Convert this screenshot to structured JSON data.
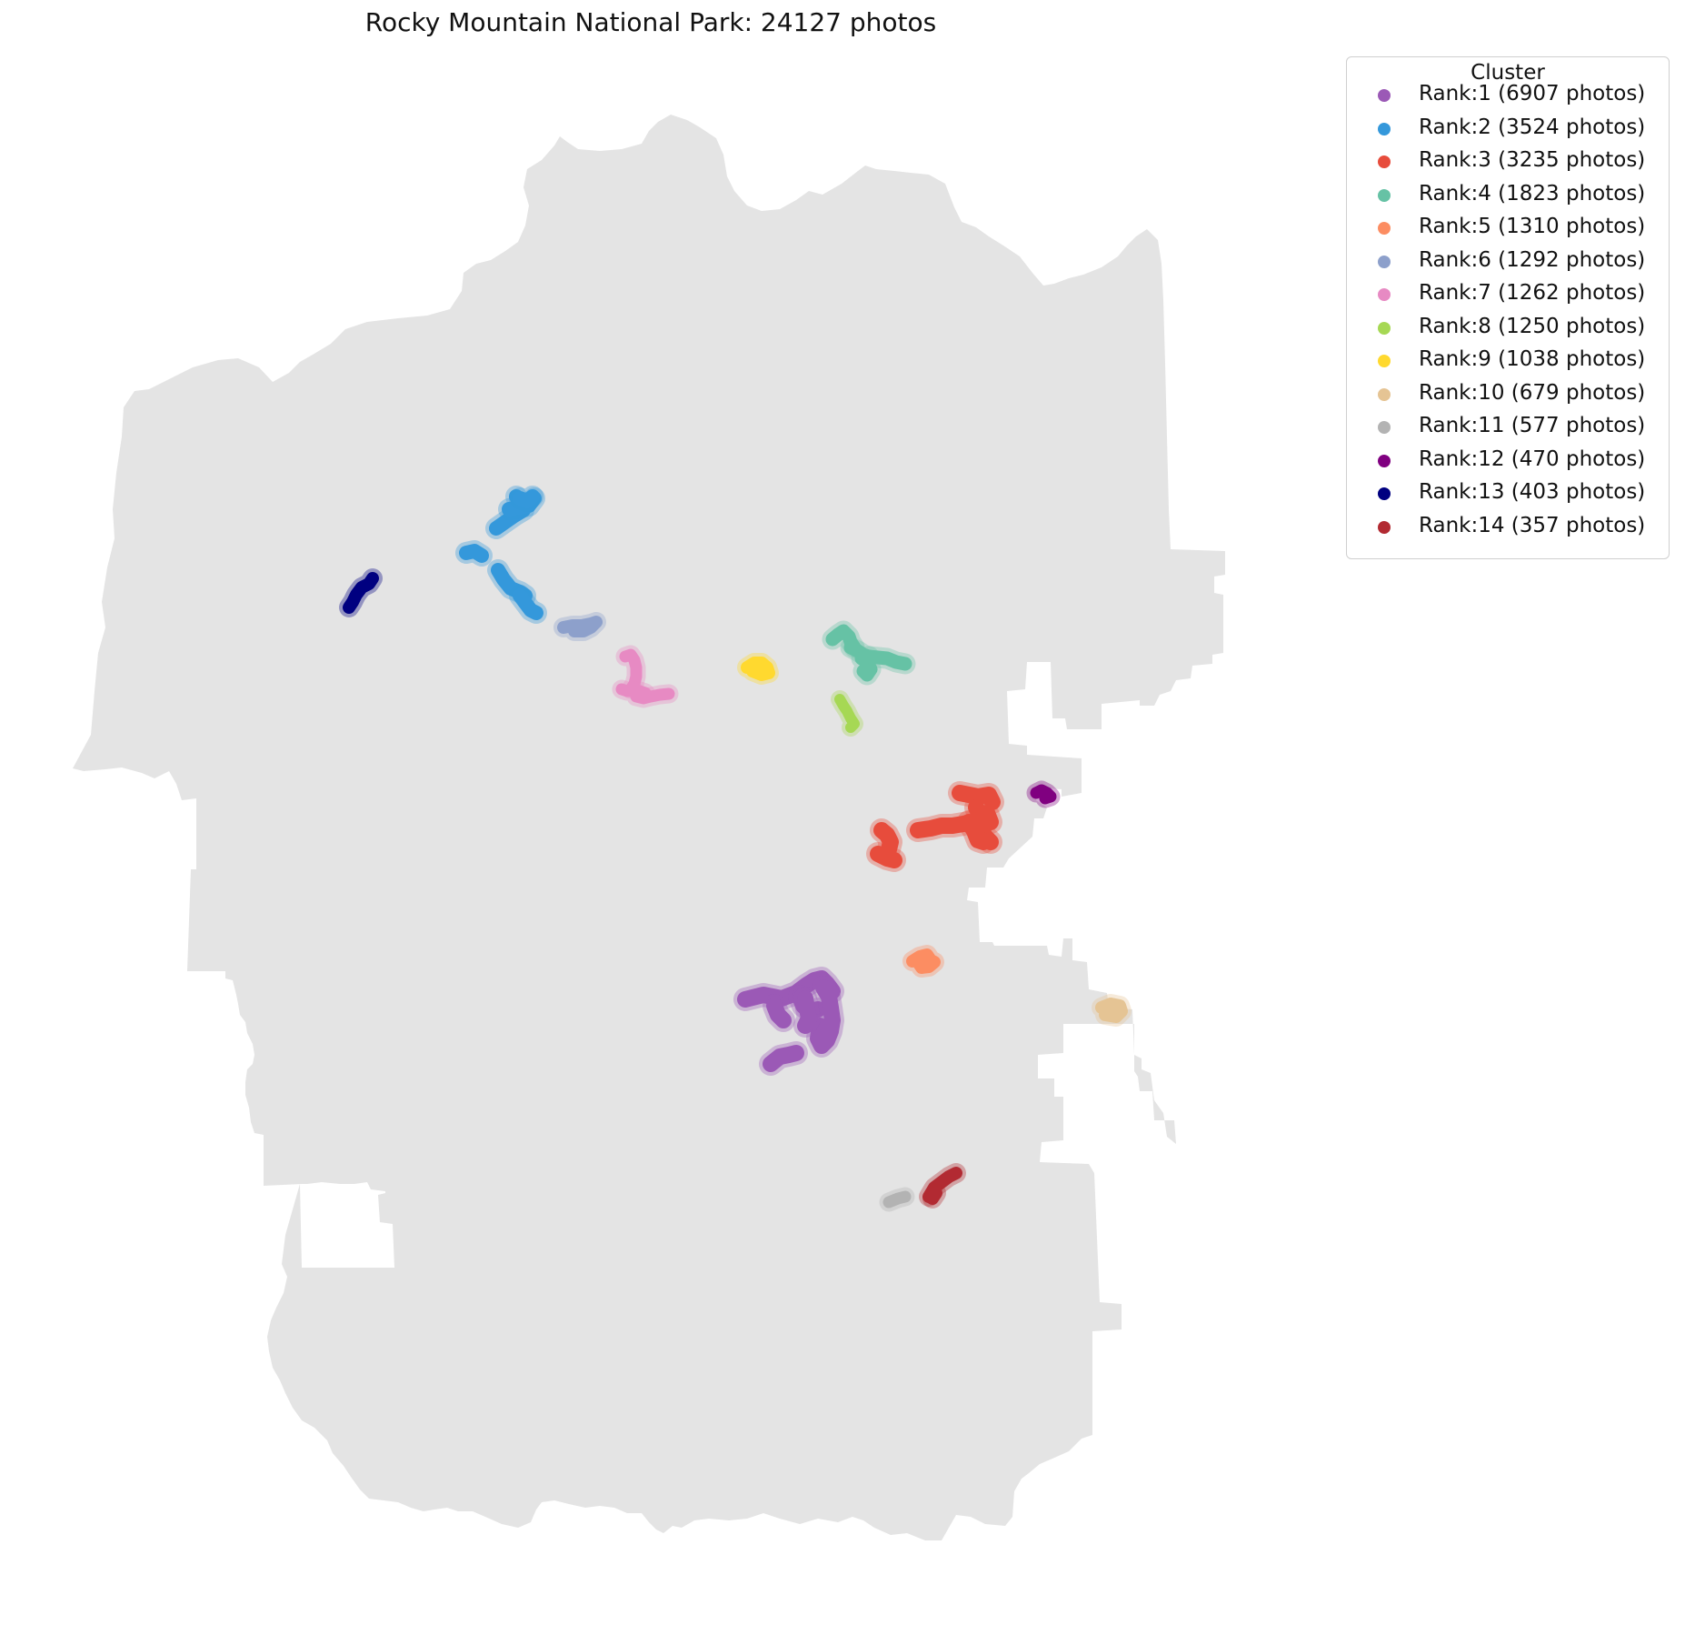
{
  "title": "Rocky Mountain National Park: 24127 photos",
  "legend": {
    "title": "Cluster",
    "placement": "upper right, outside plot"
  },
  "colors": {
    "park_fill": "#e4e4e4",
    "background": "#ffffff"
  },
  "chart_data": {
    "type": "scatter",
    "subtype": "map-clusters",
    "total_photos": 24127,
    "series": [
      {
        "name": "Rank:1 (6907 photos)",
        "rank": 1,
        "photos": 6907,
        "color": "#9b59b6",
        "cluster_id": "c1"
      },
      {
        "name": "Rank:2 (3524 photos)",
        "rank": 2,
        "photos": 3524,
        "color": "#3498db",
        "cluster_id": "c2"
      },
      {
        "name": "Rank:3 (3235 photos)",
        "rank": 3,
        "photos": 3235,
        "color": "#e74c3c",
        "cluster_id": "c3"
      },
      {
        "name": "Rank:4 (1823 photos)",
        "rank": 4,
        "photos": 1823,
        "color": "#66c2a5",
        "cluster_id": "c4"
      },
      {
        "name": "Rank:5 (1310 photos)",
        "rank": 5,
        "photos": 1310,
        "color": "#fc8d62",
        "cluster_id": "c5"
      },
      {
        "name": "Rank:6 (1292 photos)",
        "rank": 6,
        "photos": 1292,
        "color": "#8da0cb",
        "cluster_id": "c6"
      },
      {
        "name": "Rank:7 (1262 photos)",
        "rank": 7,
        "photos": 1262,
        "color": "#e78ac3",
        "cluster_id": "c7"
      },
      {
        "name": "Rank:8 (1250 photos)",
        "rank": 8,
        "photos": 1250,
        "color": "#a6d854",
        "cluster_id": "c8"
      },
      {
        "name": "Rank:9 (1038 photos)",
        "rank": 9,
        "photos": 1038,
        "color": "#ffd92f",
        "cluster_id": "c9"
      },
      {
        "name": "Rank:10 (679 photos)",
        "rank": 10,
        "photos": 679,
        "color": "#e5c494",
        "cluster_id": "c10"
      },
      {
        "name": "Rank:11 (577 photos)",
        "rank": 11,
        "photos": 577,
        "color": "#b3b3b3",
        "cluster_id": "c11"
      },
      {
        "name": "Rank:12 (470 photos)",
        "rank": 12,
        "photos": 470,
        "color": "#800080",
        "cluster_id": "c12"
      },
      {
        "name": "Rank:13 (403 photos)",
        "rank": 13,
        "photos": 403,
        "color": "#000080",
        "cluster_id": "c13"
      },
      {
        "name": "Rank:14 (357 photos)",
        "rank": 14,
        "photos": 357,
        "color": "#b22a32",
        "cluster_id": "c14"
      }
    ],
    "axes": "off",
    "grid": false
  }
}
